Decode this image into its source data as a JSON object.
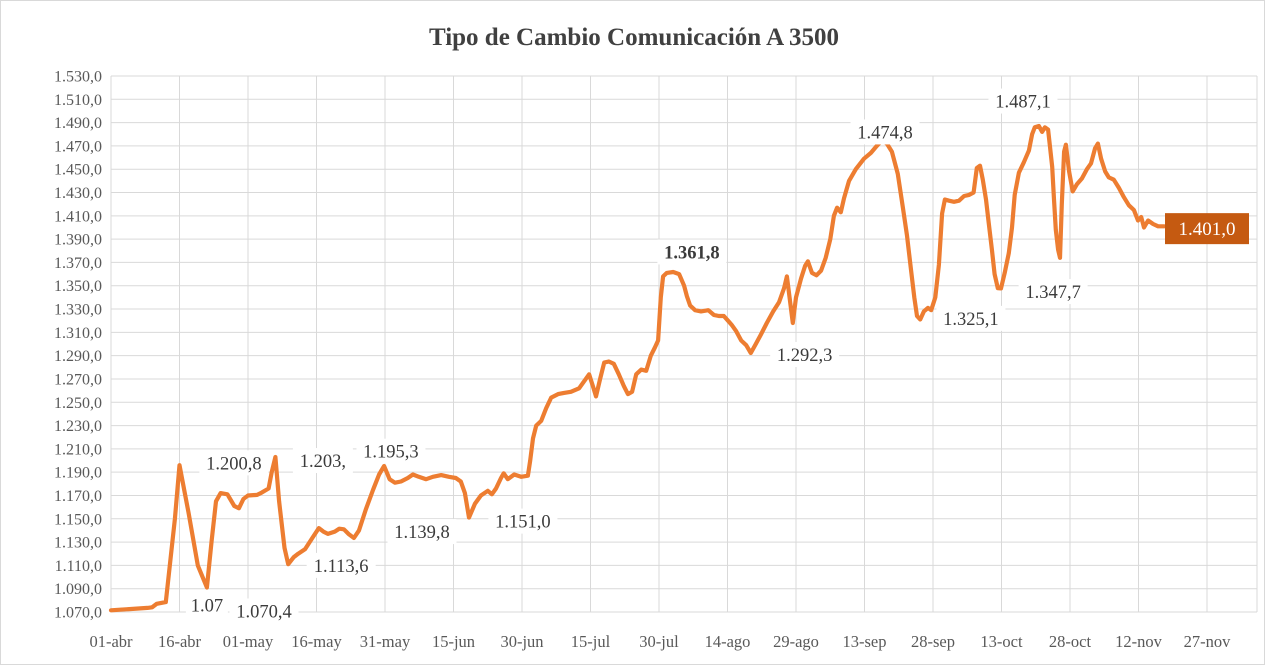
{
  "colors": {
    "line": "#ED7D31",
    "grid": "#D9D9D9",
    "axis_text": "#595959",
    "label_text": "#3B3B3B",
    "title_text": "#404040",
    "end_label_bg": "#C55A11",
    "end_label_text": "#FFFFFF",
    "background": "#FFFFFF"
  },
  "chart_data": {
    "type": "line",
    "title": "Tipo de Cambio Comunicación A 3500",
    "legend": "none",
    "grid": "on",
    "x_ticks": [
      "01-abr",
      "16-abr",
      "01-may",
      "16-may",
      "31-may",
      "15-jun",
      "30-jun",
      "15-jul",
      "30-jul",
      "14-ago",
      "29-ago",
      "13-sep",
      "28-sep",
      "13-oct",
      "28-oct",
      "12-nov",
      "27-nov"
    ],
    "x_tick_interval_days": 15,
    "y_min": 1070,
    "y_max": 1530,
    "y_step": 20,
    "y_tick_labels": [
      "1.070,0",
      "1.090,0",
      "1.110,0",
      "1.130,0",
      "1.150,0",
      "1.170,0",
      "1.190,0",
      "1.210,0",
      "1.230,0",
      "1.250,0",
      "1.270,0",
      "1.290,0",
      "1.310,0",
      "1.330,0",
      "1.350,0",
      "1.370,0",
      "1.390,0",
      "1.410,0",
      "1.430,0",
      "1.450,0",
      "1.470,0",
      "1.490,0",
      "1.510,0",
      "1.530,0"
    ],
    "series": [
      {
        "name": "Tipo de Cambio Comunicación A 3500",
        "color": "#ED7D31",
        "points": [
          [
            0,
            1071.5
          ],
          [
            2,
            1072
          ],
          [
            4,
            1072.5
          ],
          [
            6,
            1073
          ],
          [
            8,
            1073.5
          ],
          [
            9,
            1074
          ],
          [
            10,
            1077
          ],
          [
            12,
            1078.5
          ],
          [
            14,
            1150
          ],
          [
            15,
            1196
          ],
          [
            17,
            1155
          ],
          [
            19,
            1110
          ],
          [
            21,
            1091
          ],
          [
            22,
            1130
          ],
          [
            23,
            1165
          ],
          [
            24,
            1172
          ],
          [
            25.5,
            1171
          ],
          [
            27,
            1161
          ],
          [
            28,
            1159
          ],
          [
            29,
            1167
          ],
          [
            30,
            1170
          ],
          [
            32,
            1170.5
          ],
          [
            33,
            1172.5
          ],
          [
            34.5,
            1176
          ],
          [
            35.2,
            1190
          ],
          [
            36,
            1203
          ],
          [
            36.8,
            1165
          ],
          [
            38,
            1125
          ],
          [
            38.8,
            1111
          ],
          [
            40,
            1117
          ],
          [
            41,
            1120
          ],
          [
            42.5,
            1124
          ],
          [
            44,
            1133
          ],
          [
            45.5,
            1142
          ],
          [
            46.5,
            1139
          ],
          [
            47.5,
            1137
          ],
          [
            49,
            1139
          ],
          [
            50,
            1141.5
          ],
          [
            51,
            1141
          ],
          [
            52,
            1137
          ],
          [
            53.2,
            1133.5
          ],
          [
            54.3,
            1140
          ],
          [
            55.8,
            1158
          ],
          [
            57.4,
            1175
          ],
          [
            58.7,
            1188
          ],
          [
            59.8,
            1195.3
          ],
          [
            61,
            1184
          ],
          [
            62.2,
            1181
          ],
          [
            63.5,
            1182
          ],
          [
            65,
            1185
          ],
          [
            66.1,
            1188
          ],
          [
            67.4,
            1186
          ],
          [
            69,
            1184
          ],
          [
            70.5,
            1186
          ],
          [
            72.3,
            1187.5
          ],
          [
            74,
            1186
          ],
          [
            75.5,
            1185
          ],
          [
            76.6,
            1182
          ],
          [
            77.5,
            1172
          ],
          [
            78.4,
            1151
          ],
          [
            79.7,
            1163
          ],
          [
            81,
            1170
          ],
          [
            82.5,
            1174
          ],
          [
            83.4,
            1171
          ],
          [
            84.3,
            1176
          ],
          [
            85.4,
            1185
          ],
          [
            86,
            1189
          ],
          [
            86.9,
            1184
          ],
          [
            88.3,
            1188
          ],
          [
            89.8,
            1186
          ],
          [
            91.3,
            1187
          ],
          [
            91.8,
            1200
          ],
          [
            92.4,
            1219
          ],
          [
            93.1,
            1230
          ],
          [
            94.2,
            1234
          ],
          [
            95.3,
            1245
          ],
          [
            96.4,
            1254
          ],
          [
            97.9,
            1257
          ],
          [
            99.2,
            1258
          ],
          [
            100.7,
            1259
          ],
          [
            102.5,
            1262
          ],
          [
            103.6,
            1268
          ],
          [
            104.7,
            1274
          ],
          [
            105.6,
            1263
          ],
          [
            106.2,
            1255
          ],
          [
            107.1,
            1270
          ],
          [
            108,
            1284
          ],
          [
            109,
            1285
          ],
          [
            110.1,
            1283
          ],
          [
            111.2,
            1274
          ],
          [
            112.3,
            1264
          ],
          [
            113.2,
            1257
          ],
          [
            114.1,
            1259
          ],
          [
            115,
            1274
          ],
          [
            116.1,
            1278
          ],
          [
            117.2,
            1277
          ],
          [
            118.2,
            1290
          ],
          [
            119.1,
            1297
          ],
          [
            119.8,
            1303
          ],
          [
            120.4,
            1340
          ],
          [
            120.9,
            1358
          ],
          [
            121.7,
            1361
          ],
          [
            123.1,
            1361.8
          ],
          [
            124.4,
            1360
          ],
          [
            125.5,
            1350
          ],
          [
            126.1,
            1341
          ],
          [
            126.8,
            1333
          ],
          [
            127.9,
            1329
          ],
          [
            129.2,
            1328
          ],
          [
            130.8,
            1329
          ],
          [
            132,
            1325
          ],
          [
            133.1,
            1324
          ],
          [
            134.2,
            1324
          ],
          [
            135.1,
            1320
          ],
          [
            136,
            1316
          ],
          [
            136.9,
            1311
          ],
          [
            138,
            1303
          ],
          [
            139.1,
            1299
          ],
          [
            140.1,
            1292.3
          ],
          [
            141.2,
            1300
          ],
          [
            142.3,
            1308
          ],
          [
            143.6,
            1318
          ],
          [
            145,
            1328
          ],
          [
            146.3,
            1336
          ],
          [
            147.4,
            1348
          ],
          [
            148,
            1358
          ],
          [
            149.3,
            1318
          ],
          [
            150,
            1340
          ],
          [
            151.1,
            1356
          ],
          [
            152,
            1367
          ],
          [
            152.6,
            1371
          ],
          [
            153.5,
            1361
          ],
          [
            154.5,
            1359
          ],
          [
            155.5,
            1363
          ],
          [
            156.5,
            1374
          ],
          [
            157.5,
            1390
          ],
          [
            158.3,
            1410
          ],
          [
            159,
            1417
          ],
          [
            159.8,
            1413
          ],
          [
            160.5,
            1425
          ],
          [
            161.6,
            1440
          ],
          [
            163.1,
            1450
          ],
          [
            164.9,
            1459
          ],
          [
            166.4,
            1464
          ],
          [
            167.7,
            1470
          ],
          [
            168.8,
            1474.8
          ],
          [
            169.9,
            1472
          ],
          [
            171,
            1465
          ],
          [
            172.3,
            1446
          ],
          [
            173.4,
            1417
          ],
          [
            174.3,
            1393
          ],
          [
            175.2,
            1363
          ],
          [
            175.9,
            1340
          ],
          [
            176.5,
            1324
          ],
          [
            177.2,
            1321
          ],
          [
            178,
            1328
          ],
          [
            178.9,
            1331
          ],
          [
            179.6,
            1329
          ],
          [
            180.5,
            1340
          ],
          [
            181.3,
            1368
          ],
          [
            182,
            1412
          ],
          [
            182.6,
            1424
          ],
          [
            183.5,
            1423
          ],
          [
            184.6,
            1422
          ],
          [
            185.7,
            1423
          ],
          [
            186.8,
            1427
          ],
          [
            187.9,
            1428
          ],
          [
            188.9,
            1430
          ],
          [
            189.6,
            1451
          ],
          [
            190.3,
            1453
          ],
          [
            190.9,
            1441
          ],
          [
            191.6,
            1424
          ],
          [
            192.2,
            1404
          ],
          [
            192.9,
            1381
          ],
          [
            193.5,
            1360
          ],
          [
            194.2,
            1348
          ],
          [
            194.9,
            1347.7
          ],
          [
            195.7,
            1361
          ],
          [
            196.6,
            1378
          ],
          [
            197.3,
            1400
          ],
          [
            197.9,
            1428
          ],
          [
            198.8,
            1447
          ],
          [
            199.9,
            1456
          ],
          [
            201,
            1466
          ],
          [
            201.7,
            1480
          ],
          [
            202.3,
            1486
          ],
          [
            203.2,
            1487.1
          ],
          [
            203.9,
            1482
          ],
          [
            204.5,
            1486
          ],
          [
            205.2,
            1484
          ],
          [
            205.6,
            1470
          ],
          [
            206.1,
            1452
          ],
          [
            206.5,
            1424
          ],
          [
            206.9,
            1398
          ],
          [
            207.4,
            1381
          ],
          [
            207.8,
            1374
          ],
          [
            208.2,
            1420
          ],
          [
            208.7,
            1465
          ],
          [
            209.1,
            1471
          ],
          [
            209.8,
            1448
          ],
          [
            210.6,
            1431
          ],
          [
            211.5,
            1437
          ],
          [
            212.6,
            1442
          ],
          [
            213.7,
            1450
          ],
          [
            214.6,
            1455
          ],
          [
            215.5,
            1468
          ],
          [
            216.1,
            1472
          ],
          [
            216.8,
            1459
          ],
          [
            217.7,
            1448
          ],
          [
            218.5,
            1443
          ],
          [
            219.6,
            1441
          ],
          [
            220.7,
            1434
          ],
          [
            221.8,
            1426
          ],
          [
            222.9,
            1419
          ],
          [
            224,
            1415
          ],
          [
            224.9,
            1406
          ],
          [
            225.6,
            1409
          ],
          [
            226.2,
            1400
          ],
          [
            227.1,
            1406
          ],
          [
            228.2,
            1403
          ],
          [
            229.3,
            1401
          ],
          [
            230.6,
            1401
          ]
        ]
      }
    ],
    "point_labels": [
      {
        "text": "1.07",
        "day": 21.0,
        "value": 1076,
        "bold": false
      },
      {
        "text": "1.070,4",
        "day": 33.5,
        "value": 1070.9,
        "bold": false
      },
      {
        "text": "1.200,8",
        "day": 26.9,
        "value": 1198,
        "bold": false
      },
      {
        "text": "1.203,",
        "day": 46.4,
        "value": 1200,
        "bold": false
      },
      {
        "text": "1.195,3",
        "day": 61.3,
        "value": 1208,
        "bold": false
      },
      {
        "text": "1.113,6",
        "day": 50.4,
        "value": 1110,
        "bold": false
      },
      {
        "text": "1.139,8",
        "day": 68.1,
        "value": 1139,
        "bold": false
      },
      {
        "text": "1.151,0",
        "day": 90.2,
        "value": 1148,
        "bold": false
      },
      {
        "text": "1.361,8",
        "day": 127.2,
        "value": 1379,
        "bold": true
      },
      {
        "text": "1.292,3",
        "day": 151.9,
        "value": 1291,
        "bold": false
      },
      {
        "text": "1.474,8",
        "day": 169.5,
        "value": 1482,
        "bold": false
      },
      {
        "text": "1.325,1",
        "day": 188.3,
        "value": 1322,
        "bold": false
      },
      {
        "text": "1.487,1",
        "day": 199.7,
        "value": 1508.5,
        "bold": false
      },
      {
        "text": "1.347,7",
        "day": 206.3,
        "value": 1345,
        "bold": false
      }
    ],
    "end_label": {
      "text": "1.401,0",
      "day": 240,
      "value": 1399
    }
  }
}
